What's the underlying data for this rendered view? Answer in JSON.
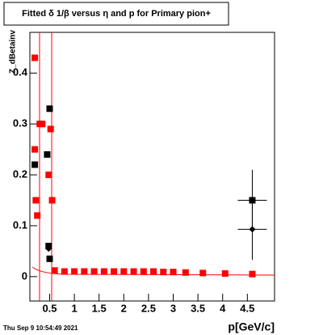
{
  "chart_data": {
    "type": "scatter",
    "title": "Fitted δ 1/β versus η and p for Primary pion+",
    "x_label": "p[GeV/c]",
    "y_label": "Z_dBetainv",
    "footer": "Thu Sep  9 10:54:49 2021",
    "xlim": [
      0.1,
      5.05
    ],
    "ylim": [
      -0.048,
      0.48
    ],
    "xticks": [
      0.5,
      1,
      1.5,
      2,
      2.5,
      3,
      3.5,
      4,
      4.5
    ],
    "yticks": [
      0,
      0.1,
      0.2,
      0.3,
      0.4
    ],
    "series": [
      {
        "marker": "square",
        "color": "#000000",
        "x": [
          0.2,
          0.45,
          0.5,
          0.48,
          0.5,
          4.6
        ],
        "values": [
          0.22,
          0.24,
          0.33,
          0.06,
          0.035,
          0.15
        ],
        "yerr": [
          0,
          0,
          0,
          0,
          0,
          0.06
        ]
      },
      {
        "marker": "diamond",
        "color": "#000000",
        "x": [
          0.2,
          0.48,
          4.6
        ],
        "values": [
          0.22,
          0.055,
          0.093
        ],
        "yerr": [
          0,
          0,
          0.06
        ]
      },
      {
        "marker": "square",
        "color": "#ff0000",
        "x": [
          0.2,
          0.2,
          0.22,
          0.25,
          0.3,
          0.35,
          0.48,
          0.52,
          0.55,
          0.6,
          0.8,
          1.0,
          1.2,
          1.4,
          1.6,
          1.8,
          2.0,
          2.2,
          2.4,
          2.6,
          2.8,
          3.0,
          3.25,
          3.6,
          4.05,
          4.6
        ],
        "values": [
          0.43,
          0.25,
          0.15,
          0.12,
          0.3,
          0.3,
          0.2,
          0.29,
          0.15,
          0.012,
          0.01,
          0.01,
          0.01,
          0.01,
          0.01,
          0.01,
          0.01,
          0.01,
          0.01,
          0.01,
          0.009,
          0.009,
          0.008,
          0.007,
          0.006,
          0.005
        ],
        "yerr": [
          0,
          0,
          0,
          0,
          0,
          0,
          0,
          0,
          0,
          0,
          0,
          0,
          0,
          0,
          0,
          0,
          0,
          0,
          0,
          0,
          0,
          0,
          0,
          0,
          0,
          0
        ]
      }
    ]
  }
}
